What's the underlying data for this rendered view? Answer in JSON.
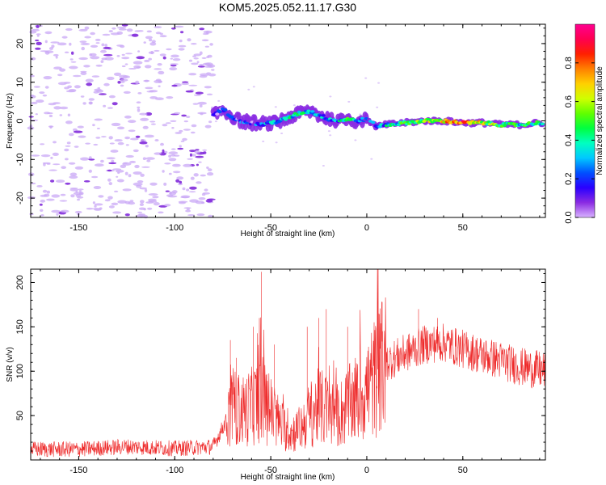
{
  "title": "KOM5.2025.052.11.17.G30",
  "colors": {
    "snr_line": "#ee2a2a",
    "noise_speckle": "#c9a8f5",
    "noise_speckle_dark": "#7a1fd8",
    "axis": "#000000"
  },
  "chart_data": [
    {
      "type": "heatmap",
      "name": "spectrogram",
      "xlabel": "Height of straight line (km)",
      "ylabel": "Frequency (Hz)",
      "xlim": [
        -175,
        93
      ],
      "ylim": [
        -25,
        25
      ],
      "x_ticks": [
        -150,
        -100,
        -50,
        0,
        50
      ],
      "y_ticks": [
        -20,
        -10,
        0,
        10,
        20
      ],
      "colorbar": {
        "label": "Normalized spectral amplitude",
        "range": [
          0,
          1
        ],
        "ticks": [
          "0.0",
          "0.2",
          "0.4",
          "0.6",
          "0.8"
        ],
        "tick_values": [
          0.0,
          0.2,
          0.4,
          0.6,
          0.8
        ],
        "colormap": [
          "#d9b3ff",
          "#8a2be2",
          "#2a00ff",
          "#0050ff",
          "#00c8ff",
          "#00ffc0",
          "#00ff40",
          "#60ff00",
          "#d0ff00",
          "#ffd000",
          "#ff8000",
          "#ff2000",
          "#ff0050",
          "#ff0090"
        ]
      },
      "signal_track": {
        "x": [
          -80,
          -75,
          -70,
          -65,
          -60,
          -55,
          -50,
          -45,
          -40,
          -35,
          -30,
          -25,
          -20,
          -15,
          -10,
          -5,
          0,
          5,
          10,
          20,
          30,
          40,
          50,
          60,
          70,
          80,
          90
        ],
        "freq": [
          1.5,
          3.0,
          1.0,
          0.0,
          -0.5,
          -1.0,
          -0.5,
          0.0,
          1.0,
          2.0,
          2.5,
          1.5,
          0.5,
          0.0,
          0.5,
          0.0,
          0.5,
          -1.5,
          -1.0,
          -0.5,
          0.0,
          0.0,
          -0.5,
          -0.5,
          -1.0,
          -1.0,
          -0.5
        ],
        "amplitude": [
          0.12,
          0.18,
          0.15,
          0.2,
          0.22,
          0.25,
          0.3,
          0.35,
          0.4,
          0.38,
          0.35,
          0.3,
          0.28,
          0.35,
          0.45,
          0.3,
          0.25,
          0.2,
          0.35,
          0.45,
          0.55,
          0.7,
          0.85,
          0.6,
          0.5,
          0.45,
          0.4
        ]
      },
      "noise_region_x": [
        -175,
        -80
      ]
    },
    {
      "type": "line",
      "name": "snr",
      "xlabel": "Height of straight line (km)",
      "ylabel": "SNR (v/v)",
      "xlim": [
        -175,
        93
      ],
      "ylim": [
        0,
        215
      ],
      "x_ticks": [
        -150,
        -100,
        -50,
        0,
        50
      ],
      "y_ticks": [
        50,
        100,
        150,
        200
      ],
      "envelope": {
        "x": [
          -175,
          -150,
          -125,
          -100,
          -80,
          -73,
          -70,
          -65,
          -60,
          -55,
          -50,
          -45,
          -40,
          -35,
          -30,
          -25,
          -20,
          -15,
          -10,
          -5,
          0,
          5,
          10,
          20,
          30,
          40,
          50,
          60,
          70,
          80,
          93
        ],
        "y": [
          12,
          12,
          15,
          13,
          15,
          45,
          60,
          55,
          60,
          70,
          55,
          40,
          30,
          35,
          50,
          60,
          55,
          50,
          60,
          70,
          80,
          95,
          110,
          120,
          130,
          132,
          125,
          118,
          112,
          105,
          100
        ]
      },
      "spikes": [
        {
          "x": -71,
          "y": 135
        },
        {
          "x": -68,
          "y": 115
        },
        {
          "x": -59,
          "y": 150
        },
        {
          "x": -56,
          "y": 160
        },
        {
          "x": -55,
          "y": 212
        },
        {
          "x": -48,
          "y": 130
        },
        {
          "x": -31,
          "y": 150
        },
        {
          "x": -25,
          "y": 160
        },
        {
          "x": -21,
          "y": 170
        },
        {
          "x": -10,
          "y": 150
        },
        {
          "x": 6,
          "y": 165
        },
        {
          "x": 8,
          "y": 178
        },
        {
          "x": 27,
          "y": 170
        },
        {
          "x": 37,
          "y": 160
        }
      ]
    }
  ]
}
